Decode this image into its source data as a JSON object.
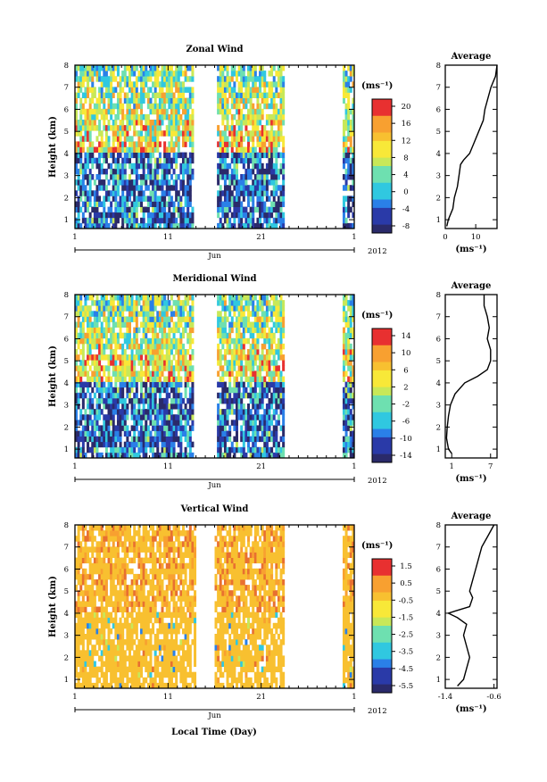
{
  "figure": {
    "xlabel": "Local Time (Day)",
    "month_label": "Jun",
    "year_label": "2012",
    "x_ticks": [
      "1",
      "11",
      "21",
      "1"
    ],
    "y_label": "Height (km)",
    "avg_title": "Average",
    "unit_label": "(ms⁻¹)"
  },
  "chart_data": [
    {
      "type": "heatmap",
      "title": "Zonal Wind",
      "xlabel": "Local Time (Day)",
      "ylabel": "Height (km)",
      "x_range": [
        1,
        31
      ],
      "y_range": [
        0.6,
        8.0
      ],
      "y_ticks": [
        1,
        2,
        3,
        4,
        5,
        6,
        7,
        8
      ],
      "colorbar_label": "(ms⁻¹)",
      "colorbar_ticks": [
        "20",
        "16",
        "12",
        "8",
        "4",
        "0",
        "-4",
        "-8"
      ],
      "colorbar_range": [
        -10,
        22
      ],
      "data_gaps": [
        [
          13.7,
          16.2
        ],
        [
          23.4,
          29.8
        ]
      ],
      "average_profile": {
        "title": "Average",
        "xlabel": "(ms⁻¹)",
        "x_ticks": [
          "0",
          "10"
        ],
        "xlim": [
          0,
          17
        ],
        "height_km": [
          0.7,
          1.0,
          1.5,
          2.0,
          2.5,
          3.0,
          3.5,
          3.7,
          4.0,
          4.5,
          5.0,
          5.5,
          6.0,
          6.5,
          7.0,
          7.5,
          8.0
        ],
        "value_ms": [
          0.5,
          1.0,
          2.5,
          3.0,
          4.0,
          4.5,
          5.0,
          6.0,
          8.0,
          9.5,
          11.0,
          12.5,
          13.0,
          14.0,
          15.0,
          16.5,
          17.0
        ]
      }
    },
    {
      "type": "heatmap",
      "title": "Meridional Wind",
      "xlabel": "Local Time (Day)",
      "ylabel": "Height (km)",
      "x_range": [
        1,
        31
      ],
      "y_range": [
        0.6,
        8.0
      ],
      "y_ticks": [
        1,
        2,
        3,
        4,
        5,
        6,
        7,
        8
      ],
      "colorbar_label": "(ms⁻¹)",
      "colorbar_ticks": [
        "14",
        "10",
        "6",
        "2",
        "-2",
        "-6",
        "-10",
        "-14"
      ],
      "colorbar_range": [
        -16,
        16
      ],
      "data_gaps": [
        [
          13.7,
          16.2
        ],
        [
          23.4,
          29.8
        ]
      ],
      "average_profile": {
        "title": "Average",
        "xlabel": "(ms⁻¹)",
        "x_ticks": [
          "1",
          "7"
        ],
        "xlim": [
          0,
          8
        ],
        "height_km": [
          0.8,
          1.0,
          1.5,
          2.0,
          2.5,
          3.0,
          3.5,
          4.0,
          4.3,
          4.6,
          5.0,
          5.5,
          6.0,
          6.5,
          7.0,
          7.5,
          8.0
        ],
        "value_ms": [
          1.0,
          0.5,
          0.2,
          0.3,
          0.5,
          0.8,
          1.5,
          3.0,
          5.0,
          6.5,
          7.0,
          7.0,
          6.5,
          6.8,
          6.5,
          6.0,
          6.0
        ]
      }
    },
    {
      "type": "heatmap",
      "title": "Vertical Wind",
      "xlabel": "Local Time (Day)",
      "ylabel": "Height (km)",
      "x_range": [
        1,
        31
      ],
      "y_range": [
        0.6,
        8.0
      ],
      "y_ticks": [
        1,
        2,
        3,
        4,
        5,
        6,
        7,
        8
      ],
      "colorbar_label": "(ms⁻¹)",
      "colorbar_ticks": [
        "1.5",
        "0.5",
        "-0.5",
        "-1.5",
        "-2.5",
        "-3.5",
        "-4.5",
        "-5.5"
      ],
      "colorbar_range": [
        -6,
        2
      ],
      "data_gaps": [
        [
          14.0,
          16.0
        ],
        [
          23.4,
          29.8
        ]
      ],
      "average_profile": {
        "title": "Average",
        "xlabel": "(ms⁻¹)",
        "x_ticks": [
          "-1.4",
          "-0.6"
        ],
        "xlim": [
          -1.4,
          -0.55
        ],
        "height_km": [
          0.7,
          1.0,
          1.5,
          2.0,
          2.5,
          3.0,
          3.5,
          3.8,
          4.0,
          4.3,
          4.7,
          5.0,
          5.5,
          6.0,
          6.5,
          7.0,
          7.5,
          8.0
        ],
        "value_ms": [
          -1.2,
          -1.1,
          -1.05,
          -1.0,
          -1.05,
          -1.1,
          -1.05,
          -1.2,
          -1.35,
          -1.0,
          -0.95,
          -1.0,
          -0.95,
          -0.9,
          -0.85,
          -0.8,
          -0.7,
          -0.6
        ]
      }
    }
  ]
}
